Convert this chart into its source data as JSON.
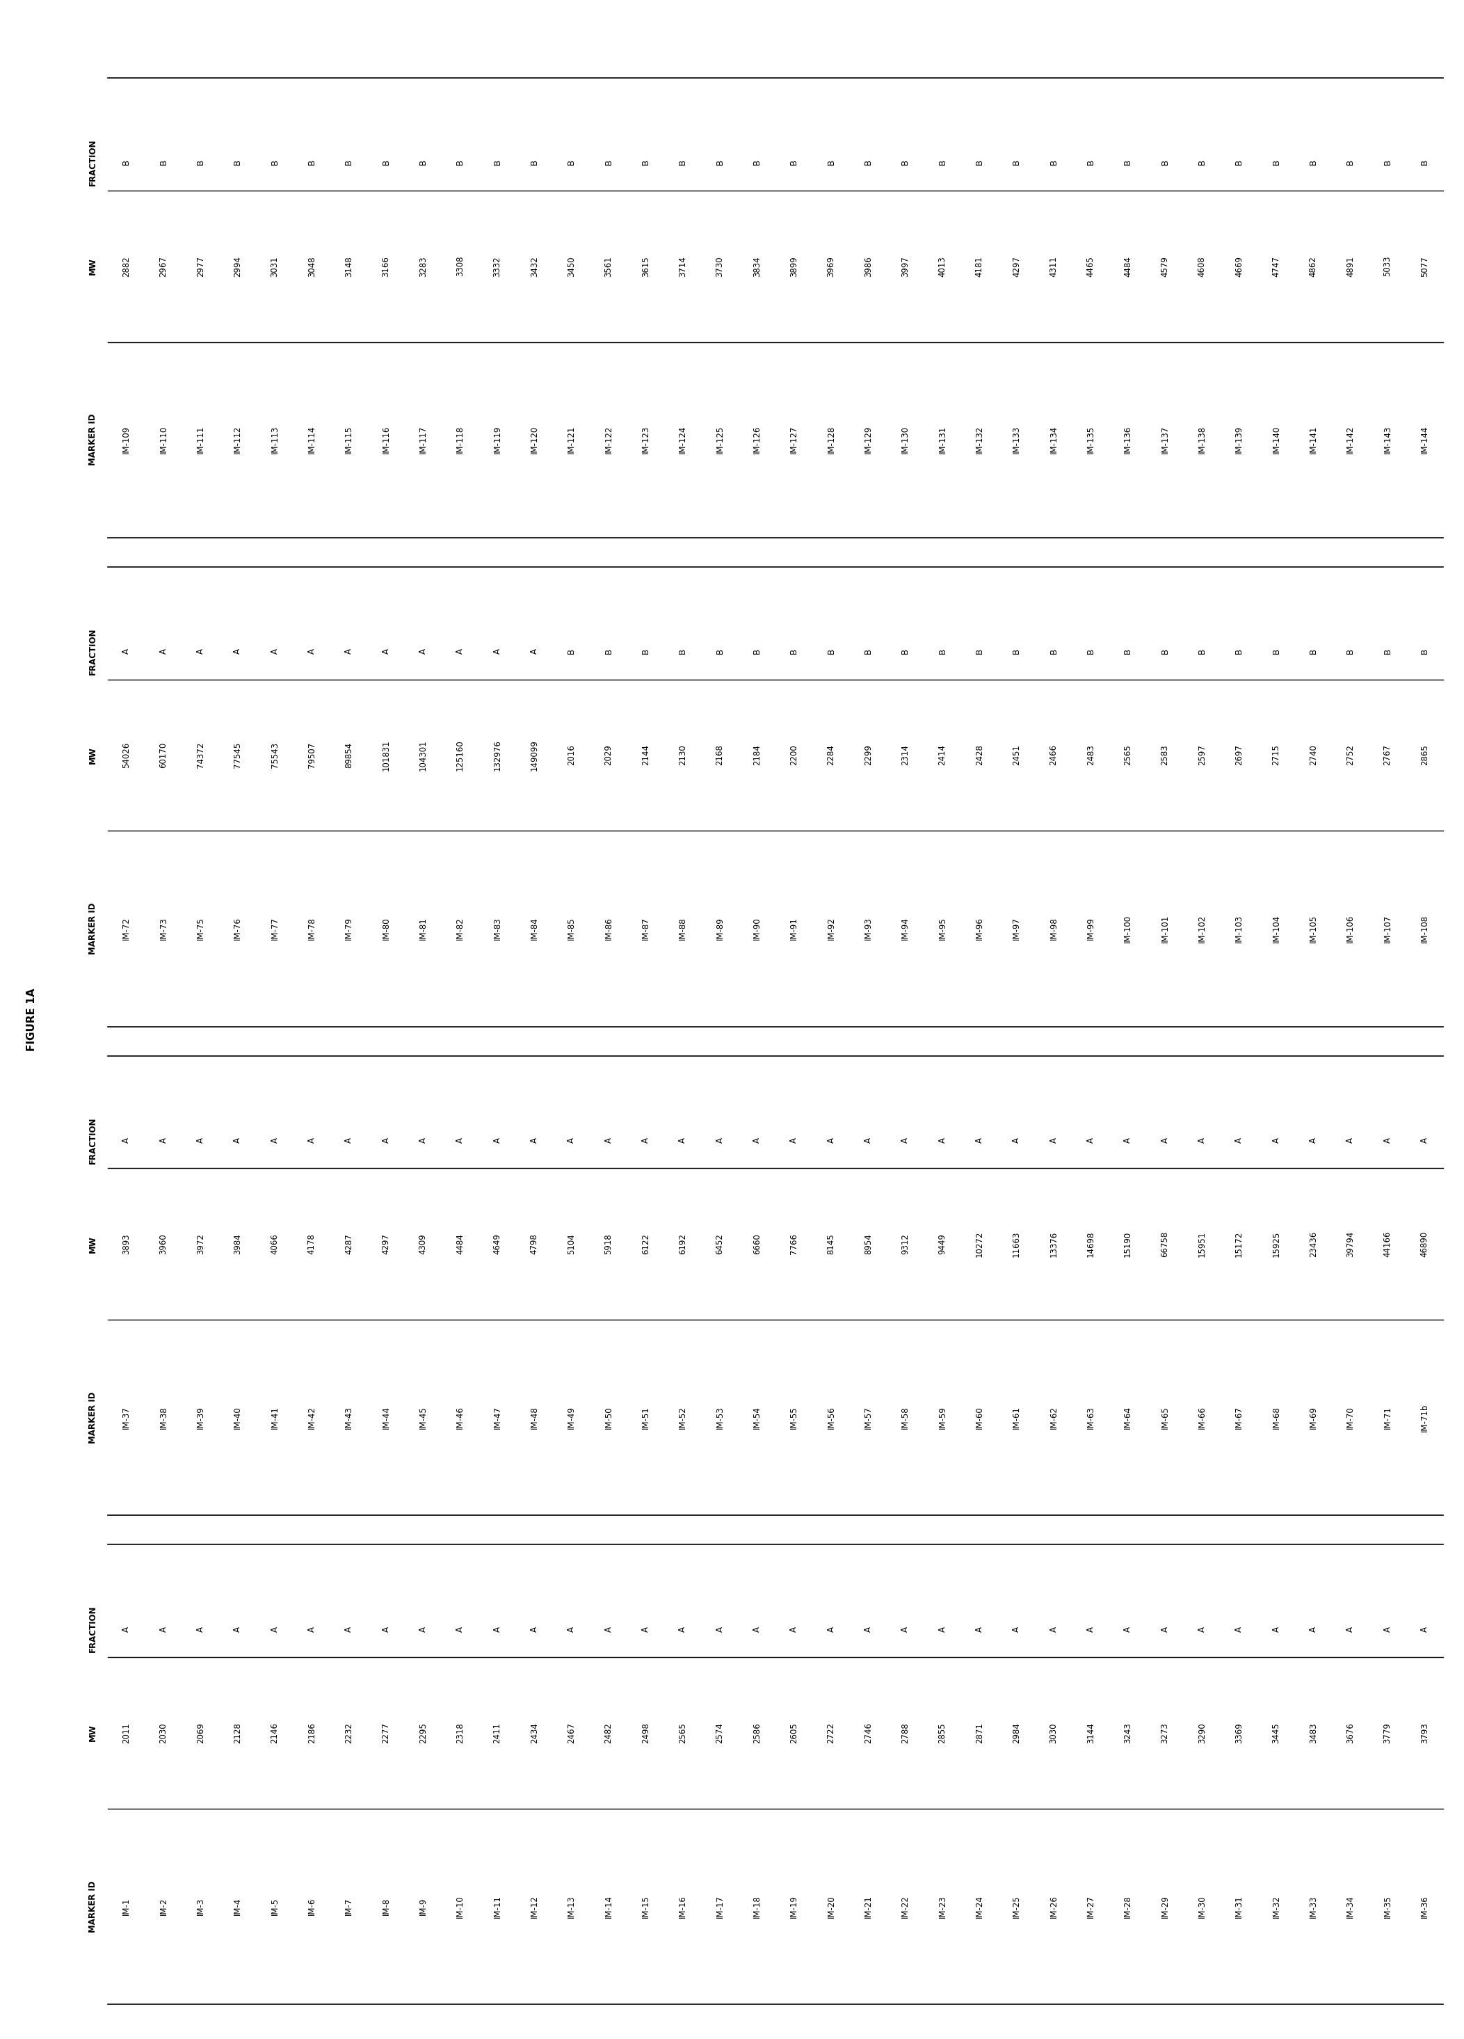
{
  "figure_label": "FIGURE 1A",
  "tables": [
    {
      "columns": [
        "MARKER ID",
        "MW",
        "FRACTION"
      ],
      "rows": [
        [
          "IM-1",
          "2011",
          "A"
        ],
        [
          "IM-2",
          "2030",
          "A"
        ],
        [
          "IM-3",
          "2069",
          "A"
        ],
        [
          "IM-4",
          "2128",
          "A"
        ],
        [
          "IM-5",
          "2146",
          "A"
        ],
        [
          "IM-6",
          "2186",
          "A"
        ],
        [
          "IM-7",
          "2232",
          "A"
        ],
        [
          "IM-8",
          "2277",
          "A"
        ],
        [
          "IM-9",
          "2295",
          "A"
        ],
        [
          "IM-10",
          "2318",
          "A"
        ],
        [
          "IM-11",
          "2411",
          "A"
        ],
        [
          "IM-12",
          "2434",
          "A"
        ],
        [
          "IM-13",
          "2467",
          "A"
        ],
        [
          "IM-14",
          "2482",
          "A"
        ],
        [
          "IM-15",
          "2498",
          "A"
        ],
        [
          "IM-16",
          "2565",
          "A"
        ],
        [
          "IM-17",
          "2574",
          "A"
        ],
        [
          "IM-18",
          "2586",
          "A"
        ],
        [
          "IM-19",
          "2605",
          "A"
        ],
        [
          "IM-20",
          "2722",
          "A"
        ],
        [
          "IM-21",
          "2746",
          "A"
        ],
        [
          "IM-22",
          "2788",
          "A"
        ],
        [
          "IM-23",
          "2855",
          "A"
        ],
        [
          "IM-24",
          "2871",
          "A"
        ],
        [
          "IM-25",
          "2984",
          "A"
        ],
        [
          "IM-26",
          "3030",
          "A"
        ],
        [
          "IM-27",
          "3144",
          "A"
        ],
        [
          "IM-28",
          "3243",
          "A"
        ],
        [
          "IM-29",
          "3273",
          "A"
        ],
        [
          "IM-30",
          "3290",
          "A"
        ],
        [
          "IM-31",
          "3369",
          "A"
        ],
        [
          "IM-32",
          "3445",
          "A"
        ],
        [
          "IM-33",
          "3483",
          "A"
        ],
        [
          "IM-34",
          "3676",
          "A"
        ],
        [
          "IM-35",
          "3779",
          "A"
        ],
        [
          "IM-36",
          "3793",
          "A"
        ]
      ]
    },
    {
      "columns": [
        "MARKER ID",
        "MW",
        "FRACTION"
      ],
      "rows": [
        [
          "IM-37",
          "3893",
          "A"
        ],
        [
          "IM-38",
          "3960",
          "A"
        ],
        [
          "IM-39",
          "3972",
          "A"
        ],
        [
          "IM-40",
          "3984",
          "A"
        ],
        [
          "IM-41",
          "4066",
          "A"
        ],
        [
          "IM-42",
          "4178",
          "A"
        ],
        [
          "IM-43",
          "4287",
          "A"
        ],
        [
          "IM-44",
          "4297",
          "A"
        ],
        [
          "IM-45",
          "4309",
          "A"
        ],
        [
          "IM-46",
          "4484",
          "A"
        ],
        [
          "IM-47",
          "4649",
          "A"
        ],
        [
          "IM-48",
          "4798",
          "A"
        ],
        [
          "IM-49",
          "5104",
          "A"
        ],
        [
          "IM-50",
          "5918",
          "A"
        ],
        [
          "IM-51",
          "6122",
          "A"
        ],
        [
          "IM-52",
          "6192",
          "A"
        ],
        [
          "IM-53",
          "6452",
          "A"
        ],
        [
          "IM-54",
          "6660",
          "A"
        ],
        [
          "IM-55",
          "7766",
          "A"
        ],
        [
          "IM-56",
          "8145",
          "A"
        ],
        [
          "IM-57",
          "8954",
          "A"
        ],
        [
          "IM-58",
          "9312",
          "A"
        ],
        [
          "IM-59",
          "9449",
          "A"
        ],
        [
          "IM-60",
          "10272",
          "A"
        ],
        [
          "IM-61",
          "11663",
          "A"
        ],
        [
          "IM-62",
          "13376",
          "A"
        ],
        [
          "IM-63",
          "14698",
          "A"
        ],
        [
          "IM-64",
          "15190",
          "A"
        ],
        [
          "IM-65",
          "66758",
          "A"
        ],
        [
          "IM-66",
          "15951",
          "A"
        ],
        [
          "IM-67",
          "15172",
          "A"
        ],
        [
          "IM-68",
          "15925",
          "A"
        ],
        [
          "IM-69",
          "23436",
          "A"
        ],
        [
          "IM-70",
          "39794",
          "A"
        ],
        [
          "IM-71",
          "44166",
          "A"
        ],
        [
          "IM-71b",
          "46890",
          "A"
        ]
      ]
    },
    {
      "columns": [
        "MARKER ID",
        "MW",
        "FRACTION"
      ],
      "rows": [
        [
          "IM-72",
          "54026",
          "A"
        ],
        [
          "IM-73",
          "60170",
          "A"
        ],
        [
          "IM-75",
          "74372",
          "A"
        ],
        [
          "IM-76",
          "77545",
          "A"
        ],
        [
          "IM-77",
          "75543",
          "A"
        ],
        [
          "IM-78",
          "79507",
          "A"
        ],
        [
          "IM-79",
          "89854",
          "A"
        ],
        [
          "IM-80",
          "101831",
          "A"
        ],
        [
          "IM-81",
          "104301",
          "A"
        ],
        [
          "IM-82",
          "125160",
          "A"
        ],
        [
          "IM-83",
          "132976",
          "A"
        ],
        [
          "IM-84",
          "149099",
          "A"
        ],
        [
          "IM-85",
          "2016",
          "B"
        ],
        [
          "IM-86",
          "2029",
          "B"
        ],
        [
          "IM-87",
          "2144",
          "B"
        ],
        [
          "IM-88",
          "2130",
          "B"
        ],
        [
          "IM-89",
          "2168",
          "B"
        ],
        [
          "IM-90",
          "2184",
          "B"
        ],
        [
          "IM-91",
          "2200",
          "B"
        ],
        [
          "IM-92",
          "2284",
          "B"
        ],
        [
          "IM-93",
          "2299",
          "B"
        ],
        [
          "IM-94",
          "2314",
          "B"
        ],
        [
          "IM-95",
          "2414",
          "B"
        ],
        [
          "IM-96",
          "2428",
          "B"
        ],
        [
          "IM-97",
          "2451",
          "B"
        ],
        [
          "IM-98",
          "2466",
          "B"
        ],
        [
          "IM-99",
          "2483",
          "B"
        ],
        [
          "IM-100",
          "2565",
          "B"
        ],
        [
          "IM-101",
          "2583",
          "B"
        ],
        [
          "IM-102",
          "2597",
          "B"
        ],
        [
          "IM-103",
          "2697",
          "B"
        ],
        [
          "IM-104",
          "2715",
          "B"
        ],
        [
          "IM-105",
          "2740",
          "B"
        ],
        [
          "IM-106",
          "2752",
          "B"
        ],
        [
          "IM-107",
          "2767",
          "B"
        ],
        [
          "IM-108",
          "2865",
          "B"
        ]
      ]
    },
    {
      "columns": [
        "MARKER ID",
        "MW",
        "FRACTION"
      ],
      "rows": [
        [
          "IM-109",
          "2882",
          "B"
        ],
        [
          "IM-110",
          "2967",
          "B"
        ],
        [
          "IM-111",
          "2977",
          "B"
        ],
        [
          "IM-112",
          "2994",
          "B"
        ],
        [
          "IM-113",
          "3031",
          "B"
        ],
        [
          "IM-114",
          "3048",
          "B"
        ],
        [
          "IM-115",
          "3148",
          "B"
        ],
        [
          "IM-116",
          "3166",
          "B"
        ],
        [
          "IM-117",
          "3283",
          "B"
        ],
        [
          "IM-118",
          "3308",
          "B"
        ],
        [
          "IM-119",
          "3332",
          "B"
        ],
        [
          "IM-120",
          "3432",
          "B"
        ],
        [
          "IM-121",
          "3450",
          "B"
        ],
        [
          "IM-122",
          "3561",
          "B"
        ],
        [
          "IM-123",
          "3615",
          "B"
        ],
        [
          "IM-124",
          "3714",
          "B"
        ],
        [
          "IM-125",
          "3730",
          "B"
        ],
        [
          "IM-126",
          "3834",
          "B"
        ],
        [
          "IM-127",
          "3899",
          "B"
        ],
        [
          "IM-128",
          "3969",
          "B"
        ],
        [
          "IM-129",
          "3986",
          "B"
        ],
        [
          "IM-130",
          "3997",
          "B"
        ],
        [
          "IM-131",
          "4013",
          "B"
        ],
        [
          "IM-132",
          "4181",
          "B"
        ],
        [
          "IM-133",
          "4297",
          "B"
        ],
        [
          "IM-134",
          "4311",
          "B"
        ],
        [
          "IM-135",
          "4465",
          "B"
        ],
        [
          "IM-136",
          "4484",
          "B"
        ],
        [
          "IM-137",
          "4579",
          "B"
        ],
        [
          "IM-138",
          "4608",
          "B"
        ],
        [
          "IM-139",
          "4669",
          "B"
        ],
        [
          "IM-140",
          "4747",
          "B"
        ],
        [
          "IM-141",
          "4862",
          "B"
        ],
        [
          "IM-142",
          "4891",
          "B"
        ],
        [
          "IM-143",
          "5033",
          "B"
        ],
        [
          "IM-144",
          "5077",
          "B"
        ]
      ]
    }
  ],
  "background_color": "#ffffff",
  "text_color": "#000000",
  "font_size": 8.5,
  "header_font_size": 8.5,
  "figure_label_fontsize": 11
}
